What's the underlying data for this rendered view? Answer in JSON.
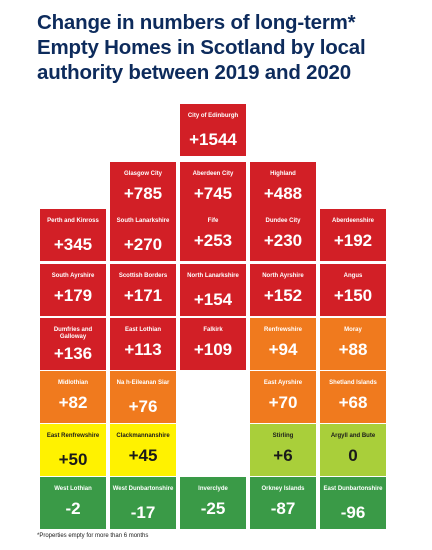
{
  "title_lines": [
    "Change in numbers of long-term*",
    "Empty Homes in Scotland by local",
    "authority between 2019 and 2020"
  ],
  "footnote": "*Properties empty for more than 6 months",
  "colors": {
    "red": "#d21f26",
    "orange": "#f07a1e",
    "yellow": "#fff200",
    "lime": "#a9cf3a",
    "green": "#3a9a47"
  },
  "chart_data": {
    "type": "table",
    "title": "Change in numbers of long-term* Empty Homes in Scotland by local authority between 2019 and 2020",
    "tiles": [
      {
        "name": "City of Edinburgh",
        "value": "+1544",
        "row": 0,
        "col": 2,
        "color": "red"
      },
      {
        "name": "Glasgow City",
        "value": "+785",
        "row": 1,
        "col": 1,
        "color": "red"
      },
      {
        "name": "Aberdeen City",
        "value": "+745",
        "row": 1,
        "col": 2,
        "color": "red"
      },
      {
        "name": "Highland",
        "value": "+488",
        "row": 1,
        "col": 3,
        "color": "red"
      },
      {
        "name": "Perth and Kinross",
        "value": "+345",
        "row": 2,
        "col": 0,
        "color": "red"
      },
      {
        "name": "South Lanarkshire",
        "value": "+270",
        "row": 2,
        "col": 1,
        "color": "red"
      },
      {
        "name": "Fife",
        "value": "+253",
        "row": 2,
        "col": 2,
        "color": "red"
      },
      {
        "name": "Dundee City",
        "value": "+230",
        "row": 2,
        "col": 3,
        "color": "red"
      },
      {
        "name": "Aberdeenshire",
        "value": "+192",
        "row": 2,
        "col": 4,
        "color": "red"
      },
      {
        "name": "South Ayrshire",
        "value": "+179",
        "row": 3,
        "col": 0,
        "color": "red"
      },
      {
        "name": "Scottish Borders",
        "value": "+171",
        "row": 3,
        "col": 1,
        "color": "red"
      },
      {
        "name": "North Lanarkshire",
        "value": "+154",
        "row": 3,
        "col": 2,
        "color": "red"
      },
      {
        "name": "North Ayrshire",
        "value": "+152",
        "row": 3,
        "col": 3,
        "color": "red"
      },
      {
        "name": "Angus",
        "value": "+150",
        "row": 3,
        "col": 4,
        "color": "red"
      },
      {
        "name": "Dumfries and Galloway",
        "value": "+136",
        "row": 4,
        "col": 0,
        "color": "red"
      },
      {
        "name": "East Lothian",
        "value": "+113",
        "row": 4,
        "col": 1,
        "color": "red"
      },
      {
        "name": "Falkirk",
        "value": "+109",
        "row": 4,
        "col": 2,
        "color": "red"
      },
      {
        "name": "Renfrewshire",
        "value": "+94",
        "row": 4,
        "col": 3,
        "color": "orange"
      },
      {
        "name": "Moray",
        "value": "+88",
        "row": 4,
        "col": 4,
        "color": "orange"
      },
      {
        "name": "Midlothian",
        "value": "+82",
        "row": 5,
        "col": 0,
        "color": "orange"
      },
      {
        "name": "Na h-Eileanan Siar",
        "value": "+76",
        "row": 5,
        "col": 1,
        "color": "orange"
      },
      {
        "name": "East Ayrshire",
        "value": "+70",
        "row": 5,
        "col": 3,
        "color": "orange"
      },
      {
        "name": "Shetland Islands",
        "value": "+68",
        "row": 5,
        "col": 4,
        "color": "orange"
      },
      {
        "name": "East Renfrewshire",
        "value": "+50",
        "row": 6,
        "col": 0,
        "color": "yellow"
      },
      {
        "name": "Clackmannanshire",
        "value": "+45",
        "row": 6,
        "col": 1,
        "color": "yellow"
      },
      {
        "name": "Stirling",
        "value": "+6",
        "row": 6,
        "col": 3,
        "color": "lime"
      },
      {
        "name": "Argyll and Bute",
        "value": "0",
        "row": 6,
        "col": 4,
        "color": "lime"
      },
      {
        "name": "West Lothian",
        "value": "-2",
        "row": 7,
        "col": 0,
        "color": "green"
      },
      {
        "name": "West Dunbartonshire",
        "value": "-17",
        "row": 7,
        "col": 1,
        "color": "green"
      },
      {
        "name": "Inverclyde",
        "value": "-25",
        "row": 7,
        "col": 2,
        "color": "green"
      },
      {
        "name": "Orkney Islands",
        "value": "-87",
        "row": 7,
        "col": 3,
        "color": "green"
      },
      {
        "name": "East Dunbartonshire",
        "value": "-96",
        "row": 7,
        "col": 4,
        "color": "green"
      }
    ]
  }
}
